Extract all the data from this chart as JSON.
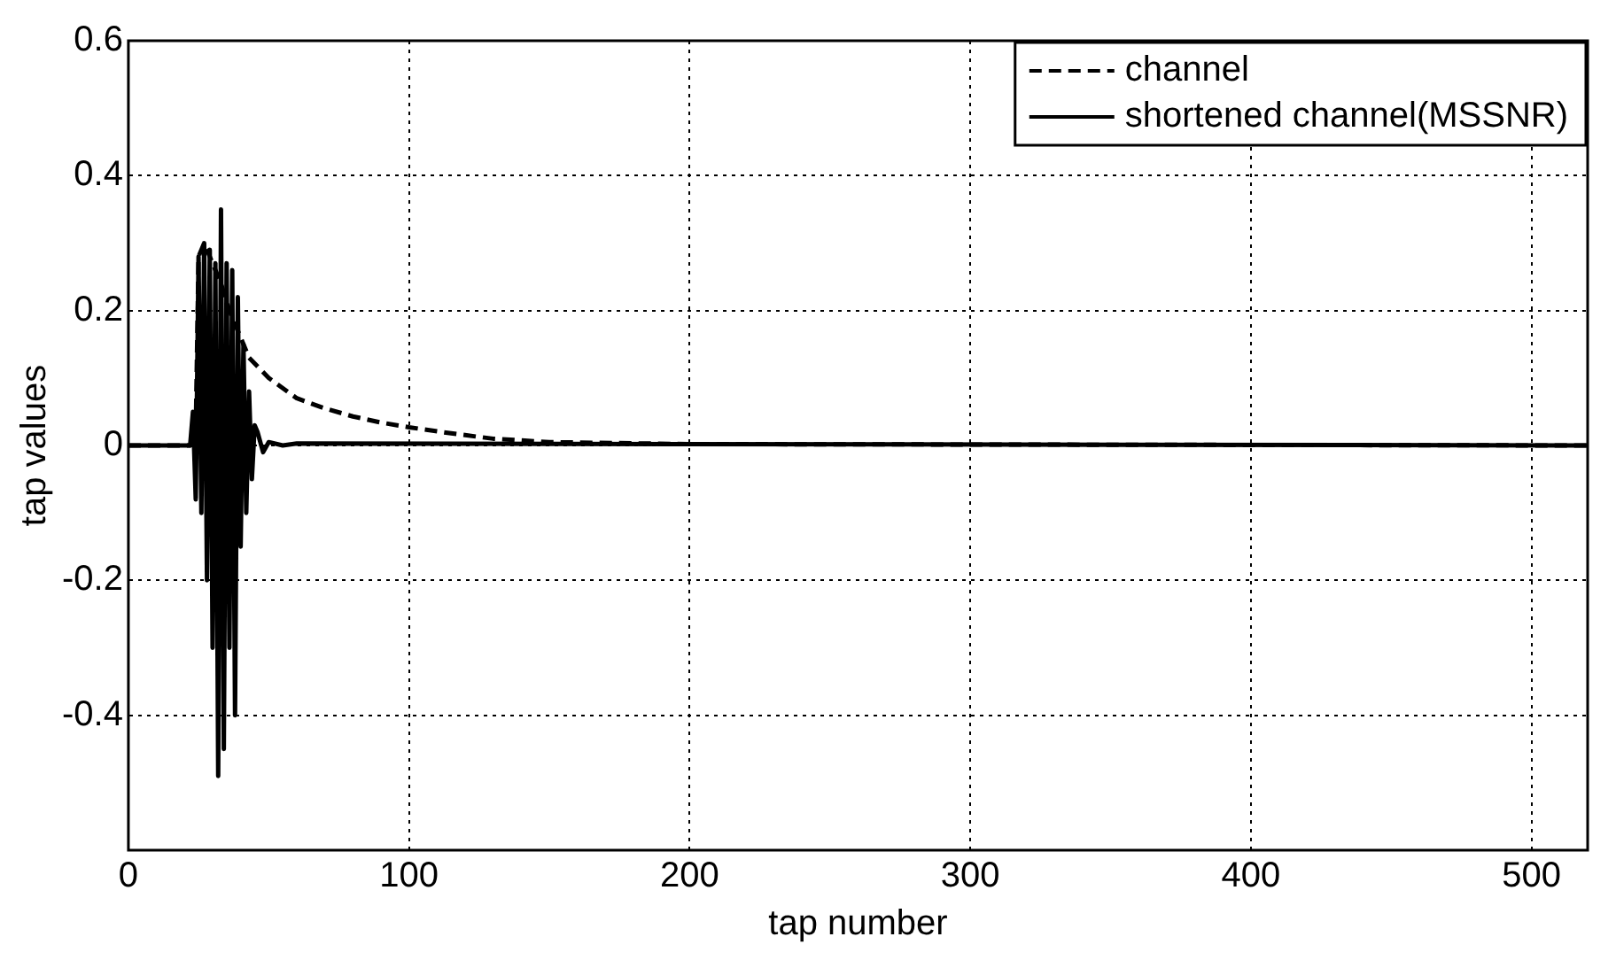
{
  "chart_data": {
    "type": "line",
    "xlabel": "tap number",
    "ylabel": "tap values",
    "xlim": [
      0,
      520
    ],
    "xticks": [
      0,
      100,
      200,
      300,
      400,
      500
    ],
    "ylim": [
      -0.6,
      0.6
    ],
    "yticks": [
      {
        "value": -0.6,
        "label": null
      },
      -0.4,
      -0.2,
      0,
      0.2,
      0.4,
      0.6
    ],
    "grid": true,
    "legend": "top right",
    "marker": "none",
    "series": [
      {
        "name": "channel",
        "color": "#000000",
        "line_style": "dashed",
        "x": [
          0,
          22,
          24,
          25,
          27,
          30,
          33,
          36,
          40,
          43,
          50,
          60,
          70,
          80,
          90,
          100,
          115,
          130,
          150,
          200,
          520
        ],
        "values": [
          0,
          0,
          0.02,
          0.28,
          0.3,
          0.27,
          0.24,
          0.2,
          0.16,
          0.13,
          0.1,
          0.07,
          0.055,
          0.043,
          0.034,
          0.027,
          0.018,
          0.01,
          0.005,
          0.002,
          0
        ]
      },
      {
        "name": "shortened channel(MSSNR)",
        "color": "#000000",
        "line_style": "solid",
        "x": [
          0,
          22,
          23,
          24,
          25,
          26,
          27,
          28,
          29,
          30,
          31,
          32,
          33,
          34,
          35,
          36,
          37,
          38,
          39,
          40,
          41,
          42,
          43,
          44,
          45,
          46,
          48,
          50,
          55,
          60,
          520
        ],
        "values": [
          0,
          0,
          0.05,
          -0.08,
          0.28,
          -0.1,
          0.3,
          -0.2,
          0.29,
          -0.3,
          0.27,
          -0.49,
          0.35,
          -0.45,
          0.27,
          -0.3,
          0.26,
          -0.4,
          0.22,
          -0.15,
          0.15,
          -0.1,
          0.08,
          -0.05,
          0.03,
          0.02,
          -0.01,
          0.005,
          0,
          0.003,
          0
        ]
      }
    ]
  }
}
